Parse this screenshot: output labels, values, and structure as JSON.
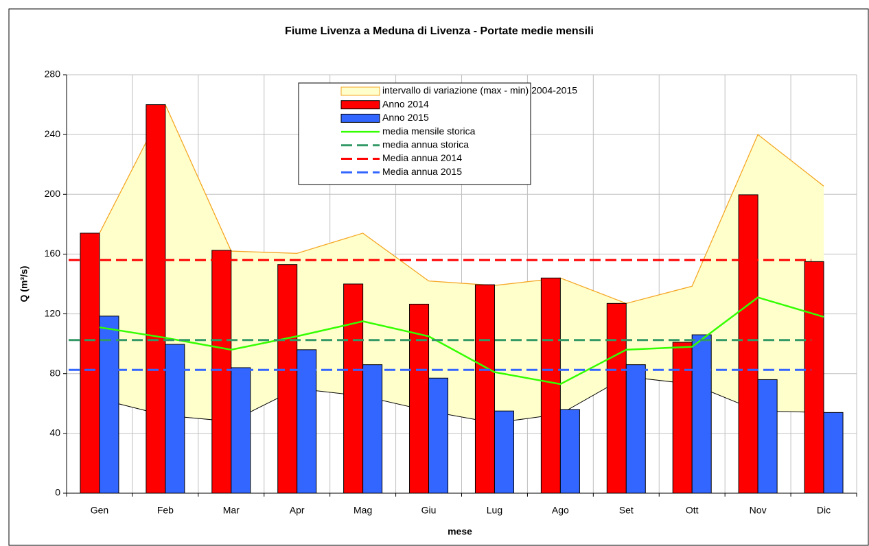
{
  "chart_data": {
    "type": "bar",
    "title": "Fiume Livenza a Meduna di Livenza - Portate medie mensili",
    "xlabel": "mese",
    "ylabel": "Q (m³/s)",
    "categories": [
      "Gen",
      "Feb",
      "Mar",
      "Apr",
      "Mag",
      "Giu",
      "Lug",
      "Ago",
      "Set",
      "Ott",
      "Nov",
      "Dic"
    ],
    "ylim": [
      0,
      280
    ],
    "yticks": [
      0,
      40,
      80,
      120,
      160,
      200,
      240,
      280
    ],
    "grid": true,
    "series": [
      {
        "name": "intervallo di variazione (max - min) 2004-2015",
        "type": "area",
        "color": "#ffffcc",
        "edge": "#f5a623",
        "max": [
          174,
          260,
          162,
          160.5,
          174,
          142,
          139,
          144,
          127,
          138.5,
          240,
          205.5
        ],
        "min": [
          63,
          52,
          48,
          70,
          65,
          55,
          47,
          53,
          78,
          73,
          55,
          54
        ]
      },
      {
        "name": "Anno 2014",
        "type": "bar",
        "color": "#ff0000",
        "values": [
          174,
          260,
          162.5,
          153,
          140,
          126.5,
          139.5,
          144,
          127,
          101,
          199.7,
          155
        ]
      },
      {
        "name": "Anno 2015",
        "type": "bar",
        "color": "#3366ff",
        "values": [
          118.5,
          99.6,
          84,
          96,
          86,
          77,
          55,
          56,
          86,
          106,
          76,
          54
        ]
      },
      {
        "name": "media mensile storica",
        "type": "line",
        "color": "#33ff00",
        "values": [
          111,
          104,
          96,
          105,
          115,
          105,
          81,
          73,
          96,
          98,
          131,
          118
        ]
      },
      {
        "name": "media annua storica",
        "type": "hline",
        "color": "#339966",
        "value": 102.5
      },
      {
        "name": "Media annua 2014",
        "type": "hline",
        "color": "#ff0000",
        "value": 156
      },
      {
        "name": "Media annua 2015",
        "type": "hline",
        "color": "#3366ff",
        "value": 82.5
      }
    ]
  }
}
